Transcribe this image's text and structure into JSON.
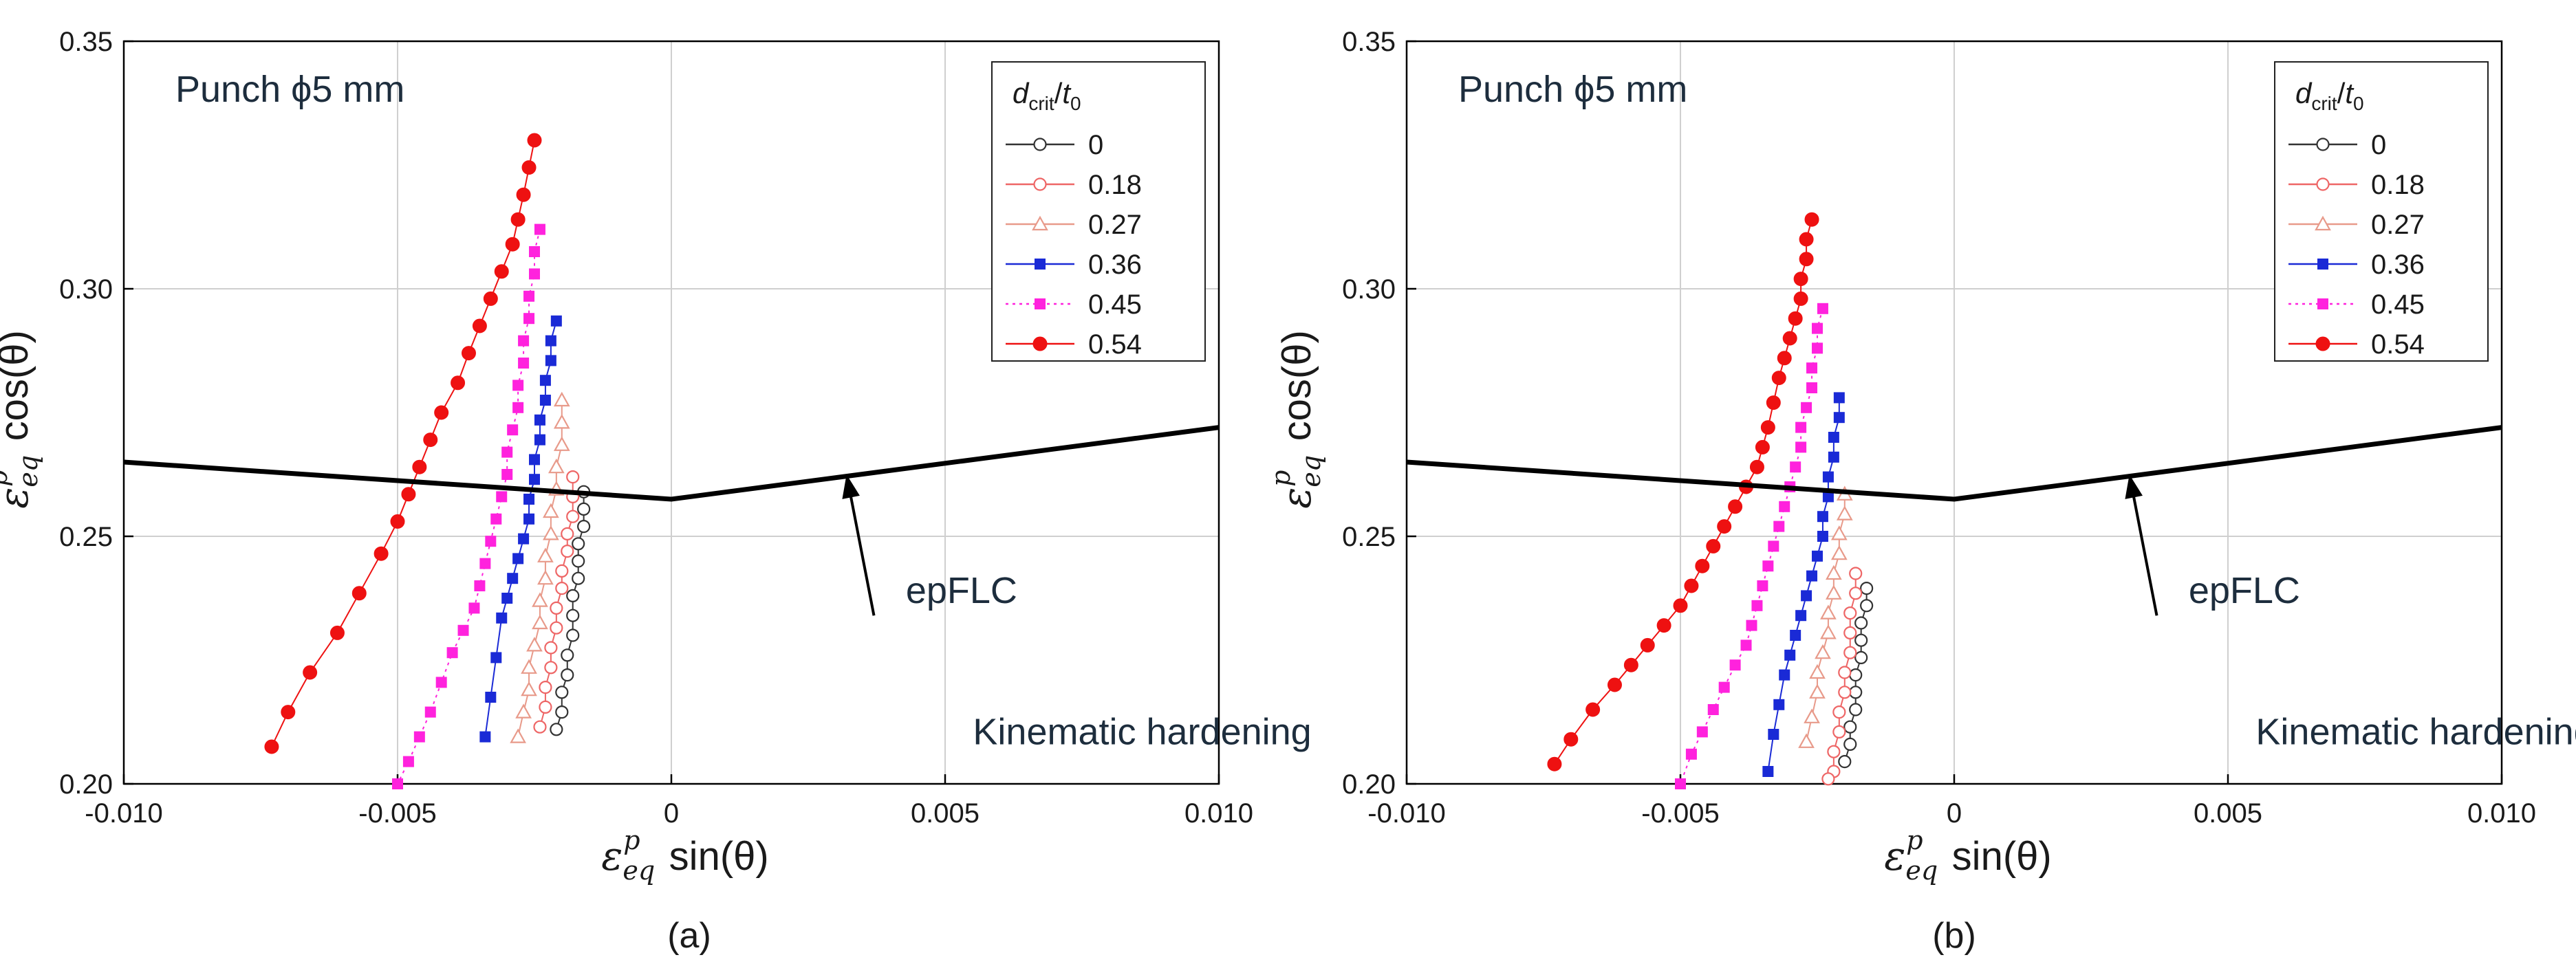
{
  "chart_data": [
    {
      "type": "line",
      "panel_label": "(a)",
      "xlim": [
        -0.01,
        0.01
      ],
      "ylim": [
        0.2,
        0.35
      ],
      "xticks": [
        "-0.010",
        "-0.005",
        "0",
        "0.005",
        "0.010"
      ],
      "yticks": [
        "0.20",
        "0.25",
        "0.30",
        "0.35"
      ],
      "xlabel": {
        "base": "ε",
        "sub": "eq",
        "sup": "p",
        "rest": " sin(θ)"
      },
      "ylabel": {
        "base": "ε",
        "sub": "eq",
        "sup": "p",
        "rest": " cos(θ)"
      },
      "grid": true,
      "annotations": {
        "title": "Punch ϕ5 mm",
        "curve_label": "epFLC",
        "model": "Kinematic hardening"
      },
      "legend": {
        "position": "top-right",
        "title": {
          "d": "d",
          "crit": "crit",
          "slash": "/",
          "t": "t",
          "zero": "0"
        }
      },
      "flc": {
        "name": "epFLC",
        "x": [
          -0.01,
          0,
          0.01
        ],
        "y": [
          0.265,
          0.2575,
          0.272
        ]
      },
      "series": [
        {
          "name": "0",
          "color": "#333333",
          "marker": "circle-open",
          "x": [
            -0.0016,
            -0.0016,
            -0.0016,
            -0.0017,
            -0.0017,
            -0.0017,
            -0.0018,
            -0.0018,
            -0.0018,
            -0.0019,
            -0.0019,
            -0.002,
            -0.002,
            -0.0021
          ],
          "y": [
            0.259,
            0.2555,
            0.252,
            0.2485,
            0.245,
            0.2415,
            0.238,
            0.234,
            0.23,
            0.226,
            0.222,
            0.2185,
            0.2145,
            0.211
          ]
        },
        {
          "name": "0.18",
          "color": "#ee6666",
          "marker": "circle-open",
          "x": [
            -0.0018,
            -0.0018,
            -0.0018,
            -0.0019,
            -0.0019,
            -0.002,
            -0.002,
            -0.0021,
            -0.0021,
            -0.0022,
            -0.0022,
            -0.0023,
            -0.0023,
            -0.0024
          ],
          "y": [
            0.262,
            0.258,
            0.254,
            0.2505,
            0.247,
            0.243,
            0.2395,
            0.2355,
            0.2315,
            0.2275,
            0.2235,
            0.2195,
            0.2155,
            0.2115
          ]
        },
        {
          "name": "0.27",
          "color": "#e89a8a",
          "marker": "triangle-open",
          "x": [
            -0.002,
            -0.002,
            -0.002,
            -0.0021,
            -0.0021,
            -0.0022,
            -0.0022,
            -0.0023,
            -0.0023,
            -0.0024,
            -0.0024,
            -0.0025,
            -0.0026,
            -0.0026,
            -0.0027,
            -0.0028
          ],
          "y": [
            0.2775,
            0.273,
            0.2685,
            0.264,
            0.2595,
            0.255,
            0.2505,
            0.246,
            0.2415,
            0.237,
            0.2325,
            0.228,
            0.2235,
            0.219,
            0.2145,
            0.2095
          ]
        },
        {
          "name": "0.36",
          "color": "#1a2ad6",
          "marker": "square-filled",
          "x": [
            -0.0021,
            -0.0022,
            -0.0022,
            -0.0023,
            -0.0023,
            -0.0024,
            -0.0024,
            -0.0025,
            -0.0025,
            -0.0026,
            -0.0026,
            -0.0027,
            -0.0028,
            -0.0029,
            -0.003,
            -0.0031,
            -0.0032,
            -0.0033,
            -0.0034
          ],
          "y": [
            0.2935,
            0.2895,
            0.2855,
            0.2815,
            0.2775,
            0.2735,
            0.2695,
            0.2655,
            0.2615,
            0.2575,
            0.2535,
            0.2495,
            0.2455,
            0.2415,
            0.2375,
            0.2335,
            0.2255,
            0.2175,
            0.2095
          ]
        },
        {
          "name": "0.45",
          "color": "#ff22dd",
          "marker": "square-filled",
          "x": [
            -0.0024,
            -0.0025,
            -0.0025,
            -0.0026,
            -0.0026,
            -0.0027,
            -0.0027,
            -0.0028,
            -0.0028,
            -0.0029,
            -0.003,
            -0.003,
            -0.0031,
            -0.0032,
            -0.0033,
            -0.0034,
            -0.0035,
            -0.0036,
            -0.0038,
            -0.004,
            -0.0042,
            -0.0044,
            -0.0046,
            -0.0048,
            -0.005
          ],
          "y": [
            0.312,
            0.3075,
            0.303,
            0.2985,
            0.294,
            0.2895,
            0.285,
            0.2805,
            0.276,
            0.2715,
            0.267,
            0.2625,
            0.258,
            0.2535,
            0.249,
            0.2445,
            0.24,
            0.2355,
            0.231,
            0.2265,
            0.2205,
            0.2145,
            0.2095,
            0.2045,
            0.2
          ]
        },
        {
          "name": "0.54",
          "color": "#ee1111",
          "marker": "circle-filled",
          "x": [
            -0.0025,
            -0.0026,
            -0.0027,
            -0.0028,
            -0.0029,
            -0.0031,
            -0.0033,
            -0.0035,
            -0.0037,
            -0.0039,
            -0.0042,
            -0.0044,
            -0.0046,
            -0.0048,
            -0.005,
            -0.0053,
            -0.0057,
            -0.0061,
            -0.0066,
            -0.007,
            -0.0073
          ],
          "y": [
            0.33,
            0.3245,
            0.319,
            0.314,
            0.309,
            0.3035,
            0.298,
            0.2925,
            0.287,
            0.281,
            0.275,
            0.2695,
            0.264,
            0.2585,
            0.253,
            0.2465,
            0.2385,
            0.2305,
            0.2225,
            0.2145,
            0.2075
          ]
        }
      ]
    },
    {
      "type": "line",
      "panel_label": "(b)",
      "xlim": [
        -0.01,
        0.01
      ],
      "ylim": [
        0.2,
        0.35
      ],
      "xticks": [
        "-0.010",
        "-0.005",
        "0",
        "0.005",
        "0.010"
      ],
      "yticks": [
        "0.20",
        "0.25",
        "0.30",
        "0.35"
      ],
      "xlabel": {
        "base": "ε",
        "sub": "eq",
        "sup": "p",
        "rest": " sin(θ)"
      },
      "ylabel": {
        "base": "ε",
        "sub": "eq",
        "sup": "p",
        "rest": " cos(θ)"
      },
      "grid": true,
      "annotations": {
        "title": "Punch ϕ5 mm",
        "curve_label": "epFLC",
        "model": "Kinematic hardening"
      },
      "legend": {
        "position": "top-right",
        "title": {
          "d": "d",
          "crit": "crit",
          "slash": "/",
          "t": "t",
          "zero": "0"
        }
      },
      "flc": {
        "name": "epFLC",
        "x": [
          -0.01,
          0,
          0.01
        ],
        "y": [
          0.265,
          0.2575,
          0.272
        ]
      },
      "series": [
        {
          "name": "0",
          "color": "#333333",
          "marker": "circle-open",
          "x": [
            -0.0016,
            -0.0016,
            -0.0017,
            -0.0017,
            -0.0017,
            -0.0018,
            -0.0018,
            -0.0018,
            -0.0019,
            -0.0019,
            -0.002
          ],
          "y": [
            0.2395,
            0.236,
            0.2325,
            0.229,
            0.2255,
            0.222,
            0.2185,
            0.215,
            0.2115,
            0.208,
            0.2045
          ]
        },
        {
          "name": "0.18",
          "color": "#ee6666",
          "marker": "circle-open",
          "x": [
            -0.0018,
            -0.0018,
            -0.0019,
            -0.0019,
            -0.0019,
            -0.002,
            -0.002,
            -0.0021,
            -0.0021,
            -0.0022,
            -0.0022,
            -0.0023
          ],
          "y": [
            0.2425,
            0.2385,
            0.2345,
            0.2305,
            0.2265,
            0.2225,
            0.2185,
            0.2145,
            0.2105,
            0.2065,
            0.2025,
            0.201
          ]
        },
        {
          "name": "0.27",
          "color": "#e89a8a",
          "marker": "triangle-open",
          "x": [
            -0.002,
            -0.002,
            -0.0021,
            -0.0021,
            -0.0022,
            -0.0022,
            -0.0023,
            -0.0023,
            -0.0024,
            -0.0025,
            -0.0025,
            -0.0026,
            -0.0027
          ],
          "y": [
            0.2585,
            0.2545,
            0.2505,
            0.2465,
            0.2425,
            0.2385,
            0.2345,
            0.2305,
            0.2265,
            0.2225,
            0.2185,
            0.2135,
            0.2085
          ]
        },
        {
          "name": "0.36",
          "color": "#1a2ad6",
          "marker": "square-filled",
          "x": [
            -0.0021,
            -0.0021,
            -0.0022,
            -0.0022,
            -0.0023,
            -0.0023,
            -0.0024,
            -0.0024,
            -0.0025,
            -0.0026,
            -0.0027,
            -0.0028,
            -0.0029,
            -0.003,
            -0.0031,
            -0.0032,
            -0.0033,
            -0.0034
          ],
          "y": [
            0.278,
            0.274,
            0.27,
            0.266,
            0.262,
            0.258,
            0.254,
            0.25,
            0.246,
            0.242,
            0.238,
            0.234,
            0.23,
            0.226,
            0.222,
            0.216,
            0.21,
            0.2025
          ]
        },
        {
          "name": "0.45",
          "color": "#ff22dd",
          "marker": "square-filled",
          "x": [
            -0.0024,
            -0.0025,
            -0.0025,
            -0.0026,
            -0.0026,
            -0.0027,
            -0.0028,
            -0.0028,
            -0.0029,
            -0.003,
            -0.0031,
            -0.0032,
            -0.0033,
            -0.0034,
            -0.0035,
            -0.0036,
            -0.0037,
            -0.0038,
            -0.004,
            -0.0042,
            -0.0044,
            -0.0046,
            -0.0048,
            -0.005
          ],
          "y": [
            0.296,
            0.292,
            0.288,
            0.284,
            0.28,
            0.276,
            0.272,
            0.268,
            0.264,
            0.26,
            0.256,
            0.252,
            0.248,
            0.244,
            0.24,
            0.236,
            0.232,
            0.228,
            0.224,
            0.2195,
            0.215,
            0.2105,
            0.206,
            0.2
          ]
        },
        {
          "name": "0.54",
          "color": "#ee1111",
          "marker": "circle-filled",
          "x": [
            -0.0026,
            -0.0027,
            -0.0027,
            -0.0028,
            -0.0028,
            -0.0029,
            -0.003,
            -0.0031,
            -0.0032,
            -0.0033,
            -0.0034,
            -0.0035,
            -0.0036,
            -0.0038,
            -0.004,
            -0.0042,
            -0.0044,
            -0.0046,
            -0.0048,
            -0.005,
            -0.0053,
            -0.0056,
            -0.0059,
            -0.0062,
            -0.0066,
            -0.007,
            -0.0073
          ],
          "y": [
            0.314,
            0.31,
            0.306,
            0.302,
            0.298,
            0.294,
            0.29,
            0.286,
            0.282,
            0.277,
            0.272,
            0.268,
            0.264,
            0.26,
            0.256,
            0.252,
            0.248,
            0.244,
            0.24,
            0.236,
            0.232,
            0.228,
            0.224,
            0.22,
            0.215,
            0.209,
            0.204
          ]
        }
      ]
    }
  ]
}
